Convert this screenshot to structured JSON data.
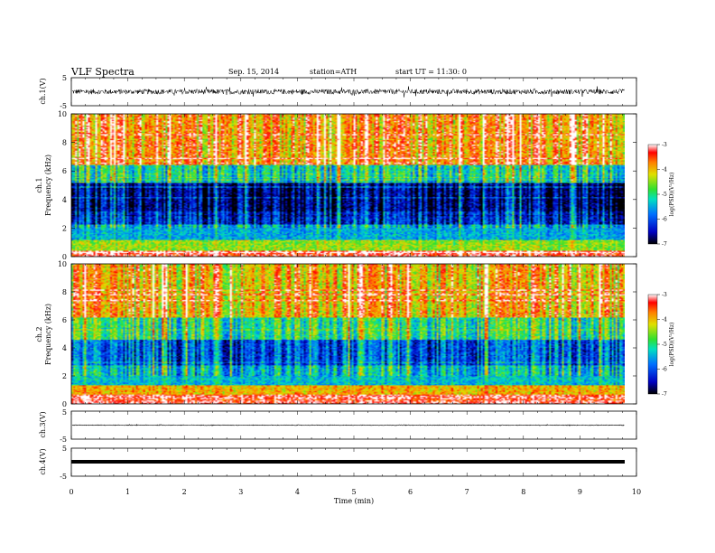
{
  "header": {
    "title": "VLF  Spectra",
    "date": "Sep. 15, 2014",
    "station": "station=ATH",
    "start": "start  UT  =   11:30: 0"
  },
  "chart_data": [
    {
      "type": "line",
      "name": "ch1-waveform",
      "ylabel": "ch.1(V)",
      "ylim": [
        -5,
        5
      ],
      "yticks": [
        "5",
        "-5"
      ],
      "xlim": [
        0,
        10
      ],
      "notes": "dense noisy waveform fluctuating roughly between -1.5 and 1.5 V around ~0"
    },
    {
      "type": "heatmap",
      "name": "ch1-spectrogram",
      "ylabel": [
        "ch.1",
        "Frequency  (kHz)"
      ],
      "ylim": [
        0,
        10
      ],
      "yticks": [
        "0",
        "2",
        "4",
        "6",
        "8",
        "10"
      ],
      "xlim": [
        0,
        9.8
      ],
      "colorbar": {
        "label": "log(PSD)(V²/Hz)",
        "range": [
          -7,
          -3
        ],
        "ticks": [
          "-3",
          "-4",
          "-5",
          "-6",
          "-7"
        ]
      },
      "band_profile": [
        {
          "f": [
            0,
            0.5
          ],
          "level": -3.3
        },
        {
          "f": [
            0.5,
            1.2
          ],
          "level": -4.5
        },
        {
          "f": [
            1.2,
            2.3
          ],
          "level": -5.5
        },
        {
          "f": [
            2.3,
            3.2
          ],
          "level": -6.3
        },
        {
          "f": [
            3.2,
            5.2
          ],
          "level": -6.7
        },
        {
          "f": [
            5.2,
            6.5
          ],
          "level": -5.2
        },
        {
          "f": [
            6.5,
            10
          ],
          "level": -3.8
        }
      ]
    },
    {
      "type": "heatmap",
      "name": "ch2-spectrogram",
      "ylabel": [
        "ch.2",
        "Frequency  (kHz)"
      ],
      "ylim": [
        0,
        10
      ],
      "yticks": [
        "0",
        "2",
        "4",
        "6",
        "8",
        "10"
      ],
      "xlim": [
        0,
        9.8
      ],
      "colorbar": {
        "label": "log(PSD)(V²/Hz)",
        "range": [
          -7,
          -3
        ],
        "ticks": [
          "-3",
          "-4",
          "-5",
          "-6",
          "-7"
        ]
      },
      "band_profile": [
        {
          "f": [
            0,
            0.6
          ],
          "level": -3.2
        },
        {
          "f": [
            0.6,
            1.4
          ],
          "level": -4.0
        },
        {
          "f": [
            1.4,
            2.8
          ],
          "level": -5.4
        },
        {
          "f": [
            2.8,
            4.6
          ],
          "level": -6.0
        },
        {
          "f": [
            4.6,
            6.2
          ],
          "level": -5.0
        },
        {
          "f": [
            6.2,
            10
          ],
          "level": -4.0
        }
      ]
    },
    {
      "type": "line",
      "name": "ch3-waveform",
      "ylabel": "ch.3(V)",
      "ylim": [
        -5,
        5
      ],
      "yticks": [
        "5",
        "-5"
      ],
      "xlim": [
        0,
        10
      ],
      "notes": "nearly flat trace at about 0 V"
    },
    {
      "type": "line",
      "name": "ch4-waveform",
      "ylabel": "ch.4(V)",
      "ylim": [
        -5,
        5
      ],
      "yticks": [
        "5",
        "-5"
      ],
      "xlim": [
        0,
        10
      ],
      "notes": "thick flat trace at about 0 V"
    }
  ],
  "xaxis": {
    "label": "Time  (min)",
    "ticks": [
      "0",
      "1",
      "2",
      "3",
      "4",
      "5",
      "6",
      "7",
      "8",
      "9",
      "10"
    ],
    "range": [
      0,
      10
    ]
  }
}
